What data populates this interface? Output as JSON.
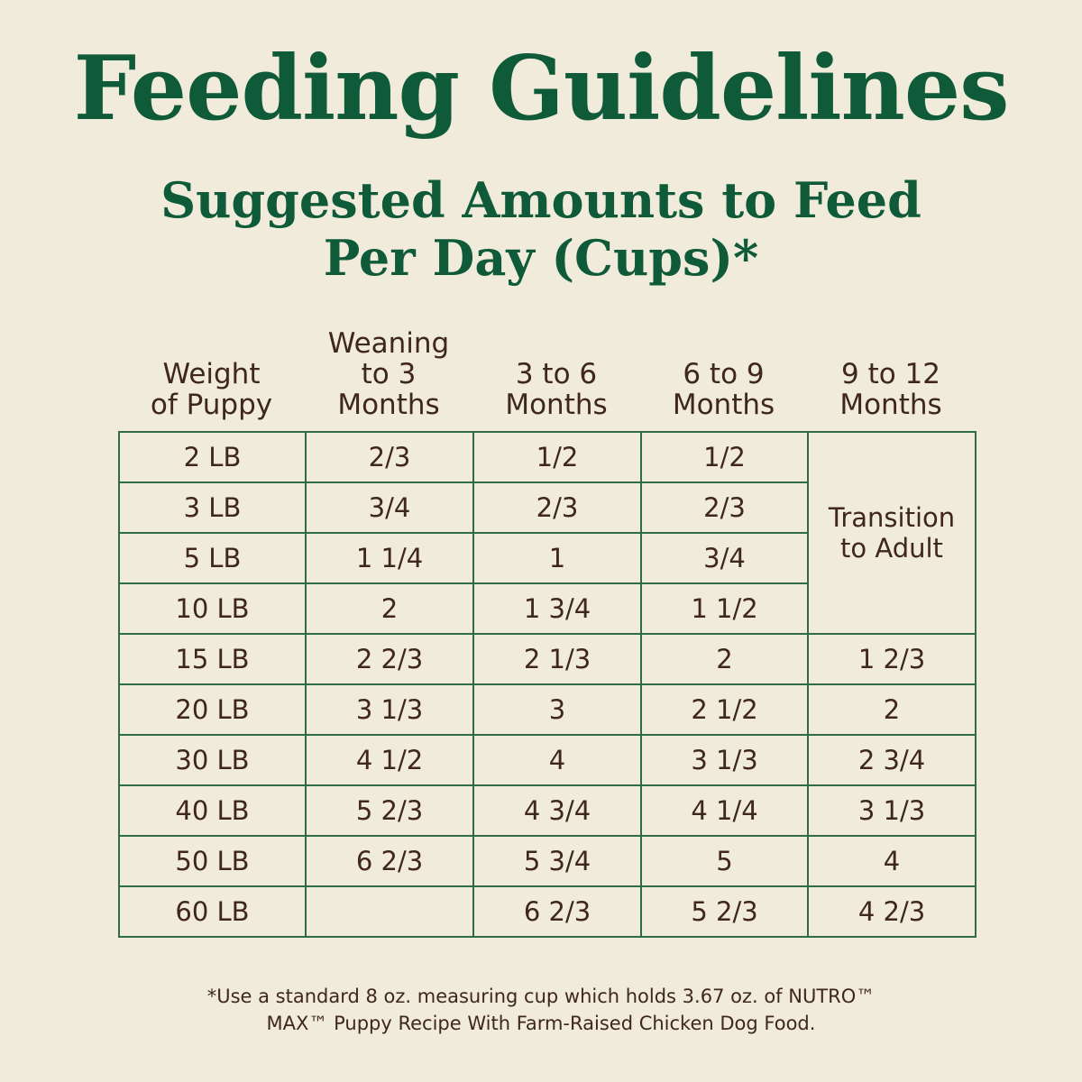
{
  "title": "Feeding Guidelines",
  "subtitle": {
    "line1": "Suggested Amounts to Feed",
    "line2": "Per Day (Cups)*"
  },
  "table": {
    "headers": [
      [
        "Weight",
        "of Puppy"
      ],
      [
        "Weaning",
        "to 3",
        "Months"
      ],
      [
        "3 to 6",
        "Months"
      ],
      [
        "6 to 9",
        "Months"
      ],
      [
        "9 to 12",
        "Months"
      ]
    ],
    "transition": [
      "Transition",
      "to Adult"
    ],
    "rows": [
      {
        "weight": "2 LB",
        "c1": "2/3",
        "c2": "1/2",
        "c3": "1/2",
        "c4": ""
      },
      {
        "weight": "3 LB",
        "c1": "3/4",
        "c2": "2/3",
        "c3": "2/3",
        "c4": ""
      },
      {
        "weight": "5 LB",
        "c1": "1 1/4",
        "c2": "1",
        "c3": "3/4",
        "c4": ""
      },
      {
        "weight": "10 LB",
        "c1": "2",
        "c2": "1 3/4",
        "c3": "1 1/2",
        "c4": ""
      },
      {
        "weight": "15 LB",
        "c1": "2 2/3",
        "c2": "2 1/3",
        "c3": "2",
        "c4": "1 2/3"
      },
      {
        "weight": "20 LB",
        "c1": "3 1/3",
        "c2": "3",
        "c3": "2 1/2",
        "c4": "2"
      },
      {
        "weight": "30 LB",
        "c1": "4 1/2",
        "c2": "4",
        "c3": "3 1/3",
        "c4": "2 3/4"
      },
      {
        "weight": "40 LB",
        "c1": "5 2/3",
        "c2": "4 3/4",
        "c3": "4 1/4",
        "c4": "3 1/3"
      },
      {
        "weight": "50 LB",
        "c1": "6 2/3",
        "c2": "5 3/4",
        "c3": "5",
        "c4": "4"
      },
      {
        "weight": "60 LB",
        "c1": "",
        "c2": "6 2/3",
        "c3": "5 2/3",
        "c4": "4 2/3"
      }
    ]
  },
  "footnote": {
    "line1": "*Use a standard 8 oz. measuring cup which holds 3.67 oz. of NUTRO™",
    "line2": "MAX™ Puppy Recipe With Farm-Raised Chicken Dog Food."
  },
  "colors": {
    "background": "#f1ebdb",
    "heading_green": "#0f5a38",
    "grid_green": "#2f6a49",
    "text_brown": "#3f2620"
  }
}
